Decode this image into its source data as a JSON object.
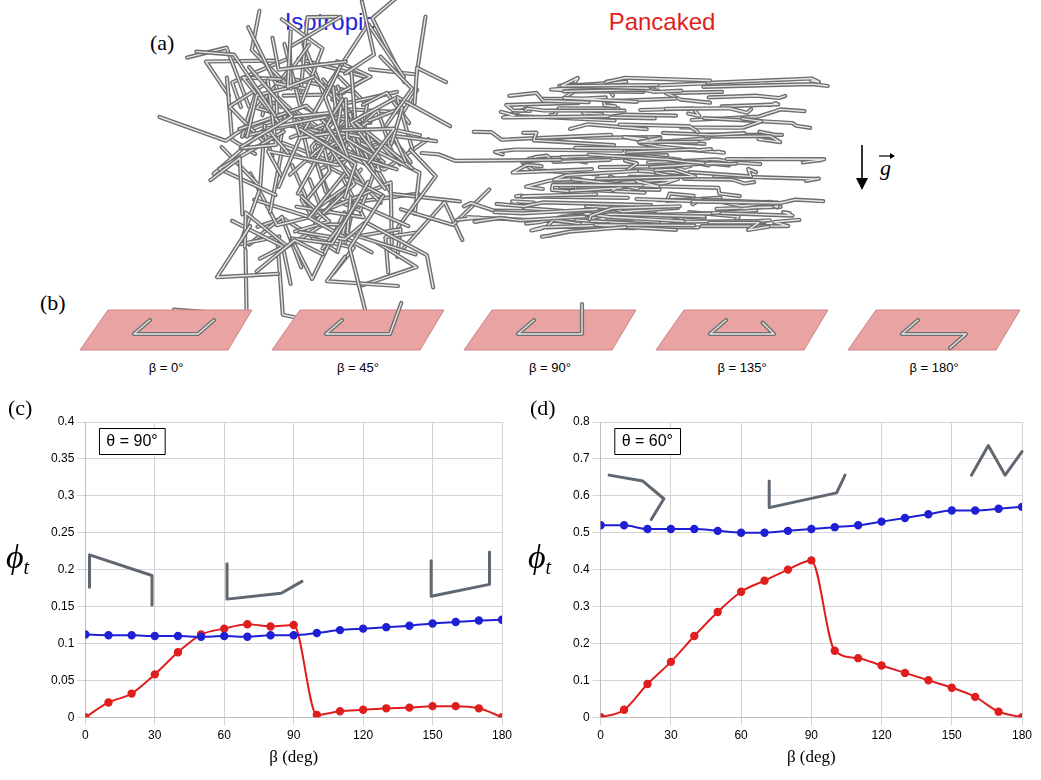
{
  "panel_a": {
    "letter": "(a)",
    "titles": [
      {
        "text": "Isotropic",
        "color": "#2424d8"
      },
      {
        "text": "Pancaked",
        "color": "#e01e1e"
      }
    ],
    "vector_label": "g"
  },
  "panel_b": {
    "letter": "(b)",
    "items": [
      {
        "label": "β = 0°",
        "beta": 0
      },
      {
        "label": "β = 45°",
        "beta": 45
      },
      {
        "label": "β = 90°",
        "beta": 90
      },
      {
        "label": "β = 135°",
        "beta": 135
      },
      {
        "label": "β = 180°",
        "beta": 180
      }
    ]
  },
  "chart_data": [
    {
      "type": "line",
      "panel": "(c)",
      "annotation": "θ = 90°",
      "xlabel": "β (deg)",
      "ylabel": "ϕt",
      "x": [
        0,
        10,
        20,
        30,
        40,
        50,
        60,
        70,
        80,
        90,
        100,
        110,
        120,
        130,
        140,
        150,
        160,
        170,
        180
      ],
      "series": [
        {
          "color": "#1f1fd6",
          "marker": "circle",
          "values": [
            0.112,
            0.111,
            0.111,
            0.11,
            0.11,
            0.109,
            0.11,
            0.109,
            0.111,
            0.111,
            0.114,
            0.118,
            0.12,
            0.122,
            0.124,
            0.127,
            0.129,
            0.131,
            0.132
          ]
        },
        {
          "color": "#e01e1e",
          "marker": "circle",
          "values": [
            0,
            0.02,
            0.032,
            0.058,
            0.088,
            0.112,
            0.12,
            0.126,
            0.123,
            0.125,
            0.003,
            0.008,
            0.01,
            0.012,
            0.013,
            0.015,
            0.015,
            0.012,
            0
          ]
        }
      ],
      "xlim": [
        0,
        180
      ],
      "xticks": [
        0,
        30,
        60,
        90,
        120,
        150,
        180
      ],
      "ylim": [
        0,
        0.4
      ],
      "yticks": [
        0,
        0.05,
        0.1,
        0.15,
        0.2,
        0.25,
        0.3,
        0.35,
        0.4
      ],
      "grid": true
    },
    {
      "type": "line",
      "panel": "(d)",
      "annotation": "θ = 60°",
      "xlabel": "β (deg)",
      "ylabel": "ϕt",
      "x": [
        0,
        10,
        20,
        30,
        40,
        50,
        60,
        70,
        80,
        90,
        100,
        110,
        120,
        130,
        140,
        150,
        160,
        170,
        180
      ],
      "series": [
        {
          "color": "#1f1fd6",
          "marker": "circle",
          "values": [
            0.52,
            0.52,
            0.51,
            0.51,
            0.51,
            0.505,
            0.5,
            0.5,
            0.505,
            0.51,
            0.515,
            0.52,
            0.53,
            0.54,
            0.55,
            0.56,
            0.56,
            0.565,
            0.57
          ]
        },
        {
          "color": "#e01e1e",
          "marker": "circle",
          "values": [
            0,
            0.02,
            0.09,
            0.15,
            0.22,
            0.285,
            0.34,
            0.37,
            0.4,
            0.425,
            0.18,
            0.16,
            0.14,
            0.12,
            0.1,
            0.08,
            0.055,
            0.015,
            0
          ]
        }
      ],
      "xlim": [
        0,
        180
      ],
      "xticks": [
        0,
        30,
        60,
        90,
        120,
        150,
        180
      ],
      "ylim": [
        0,
        0.8
      ],
      "yticks": [
        0,
        0.1,
        0.2,
        0.3,
        0.4,
        0.5,
        0.6,
        0.7,
        0.8
      ],
      "grid": true
    }
  ]
}
